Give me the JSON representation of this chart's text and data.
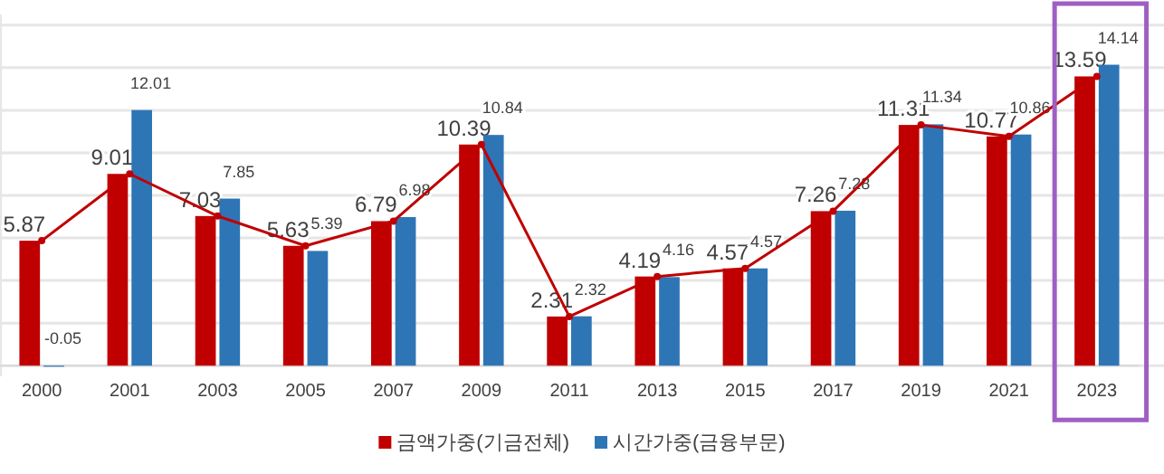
{
  "chart_data": {
    "type": "bar",
    "categories": [
      "2000",
      "2001",
      "2003",
      "2005",
      "2007",
      "2009",
      "2011",
      "2013",
      "2015",
      "2017",
      "2019",
      "2021",
      "2023"
    ],
    "series": [
      {
        "name": "금액가중(기금전체)",
        "color": "#c00000",
        "values": [
          5.87,
          9.01,
          7.03,
          5.63,
          6.79,
          10.39,
          2.31,
          4.19,
          4.57,
          7.26,
          11.31,
          10.77,
          13.59
        ],
        "value_labels": [
          "5.87",
          "9.01",
          "7.03",
          "5.63",
          "6.79",
          "10.39",
          "2.31",
          "4.19",
          "4.57",
          "7.26",
          "11.31",
          "10.77",
          "13.59"
        ]
      },
      {
        "name": "시간가중(금융부문)",
        "color": "#2e75b6",
        "values": [
          -0.05,
          12.01,
          7.85,
          5.39,
          6.98,
          10.84,
          2.32,
          4.16,
          4.57,
          7.28,
          11.34,
          10.86,
          14.14
        ],
        "value_labels": [
          "-0.05",
          "12.01",
          "7.85",
          "5.39",
          "6.98",
          "10.84",
          "2.32",
          "4.16",
          "4.57",
          "7.28",
          "11.34",
          "10.86",
          "14.14"
        ]
      },
      {
        "type": "line",
        "color": "#c00000",
        "values": [
          5.87,
          9.01,
          7.03,
          5.63,
          6.79,
          10.39,
          2.31,
          4.19,
          4.57,
          7.26,
          11.31,
          10.77,
          13.59
        ]
      }
    ],
    "ylim": [
      -0.5,
      16.5
    ],
    "yticks": [
      {
        "value": 0,
        "label": null
      },
      {
        "value": 2,
        "label": null
      },
      {
        "value": 4,
        "label": null
      },
      {
        "value": 6,
        "label": null
      },
      {
        "value": 8,
        "label": null
      },
      {
        "value": 10,
        "label": null
      },
      {
        "value": 12,
        "label": null
      },
      {
        "value": 14,
        "label": null
      },
      {
        "value": 16,
        "label": null
      }
    ],
    "tick_labels": "x",
    "grid": "y",
    "legend": "bottom",
    "marker": "circle"
  }
}
